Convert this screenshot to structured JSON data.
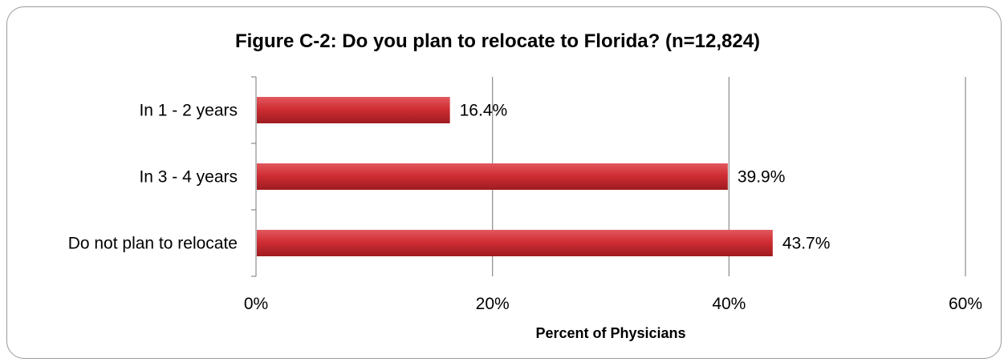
{
  "chart_data": {
    "type": "bar",
    "orientation": "horizontal",
    "title": "Figure C-2: Do you plan to relocate to Florida? (n=12,824)",
    "xlabel": "Percent of Physicians",
    "ylabel": "",
    "categories": [
      "In 1 - 2 years",
      "In 3 - 4 years",
      "Do not plan to relocate"
    ],
    "values": [
      16.4,
      39.9,
      43.7
    ],
    "data_labels": [
      "16.4%",
      "39.9%",
      "43.7%"
    ],
    "xlim": [
      0,
      60
    ],
    "x_ticks": [
      0,
      20,
      40,
      60
    ],
    "x_tick_labels": [
      "0%",
      "20%",
      "40%",
      "60%"
    ],
    "grid": "vertical major gridlines",
    "legend": "none",
    "bar_color": "#c8272d"
  }
}
